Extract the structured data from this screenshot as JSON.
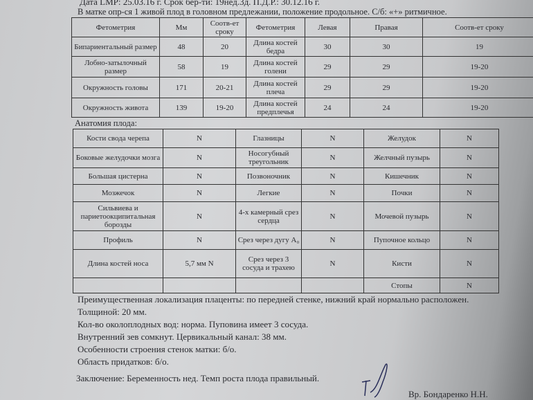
{
  "header": {
    "line1": "Дата LMP: 25.03.16 г.  Срок бер-ти: 19нед.3д.  П.Д.Р.: 30.12.16 г.",
    "line2": "В матке опр-ся 1 живой плод в головном предлежании, положение продольное. С/б: «+» ритмичное."
  },
  "fetometry": {
    "headers": [
      "Фетометрия",
      "Мм",
      "Соотв-ет сроку",
      "Фетометрия",
      "Левая",
      "Правая",
      "Соотв-ет сроку"
    ],
    "rows": [
      [
        "Бипариентальный размер",
        "48",
        "20",
        "Длина костей бедра",
        "30",
        "30",
        "19"
      ],
      [
        "Лобно-затылочный размер",
        "58",
        "19",
        "Длина костей голени",
        "29",
        "29",
        "19-20"
      ],
      [
        "Окружность головы",
        "171",
        "20-21",
        "Длина костей плеча",
        "29",
        "29",
        "19-20"
      ],
      [
        "Окружность живота",
        "139",
        "19-20",
        "Длина костей предплечья",
        "24",
        "24",
        "19-20"
      ]
    ]
  },
  "anatomy": {
    "title": "Анатомия плода:",
    "rows": [
      [
        "Кости свода черепа",
        "N",
        "Глазницы",
        "N",
        "Желудок",
        "N"
      ],
      [
        "Боковые желудочки мозга",
        "N",
        "Носогубный треугольник",
        "N",
        "Желчный пузырь",
        "N"
      ],
      [
        "Большая цистерна",
        "N",
        "Позвоночник",
        "N",
        "Кишечник",
        "N"
      ],
      [
        "Мозжечок",
        "N",
        "Легкие",
        "N",
        "Почки",
        "N"
      ],
      [
        "Сильвиева и париетоокципитальная борозды",
        "N",
        "4-х камерный срез сердца",
        "N",
        "Мочевой пузырь",
        "N"
      ],
      [
        "Профиль",
        "N",
        "Срез через дугу A₀",
        "N",
        "Пупочное кольцо",
        "N"
      ],
      [
        "Длина костей носа",
        "5,7 мм N",
        "Срез через 3 сосуда и трахею",
        "N",
        "Кисти",
        "N"
      ],
      [
        "",
        "",
        "",
        "",
        "Стопы",
        "N"
      ]
    ]
  },
  "notes": [
    "Преимущественная локализация плаценты: по передней стенке, нижний край нормально расположен.",
    "Толщиной: 20 мм.",
    "Кол-во околоплодных вод: норма. Пуповина имеет 3 сосуда.",
    "Внутренний зев сомкнут.  Цервикальный канал: 38 мм.",
    "Особенности строения стенок матки: б/о.",
    "Область придатков: б/о."
  ],
  "conclusion": "Заключение: Беременность  нед. Темп роста плода правильный.",
  "doctor": "Вр. Бондаренко Н.Н."
}
